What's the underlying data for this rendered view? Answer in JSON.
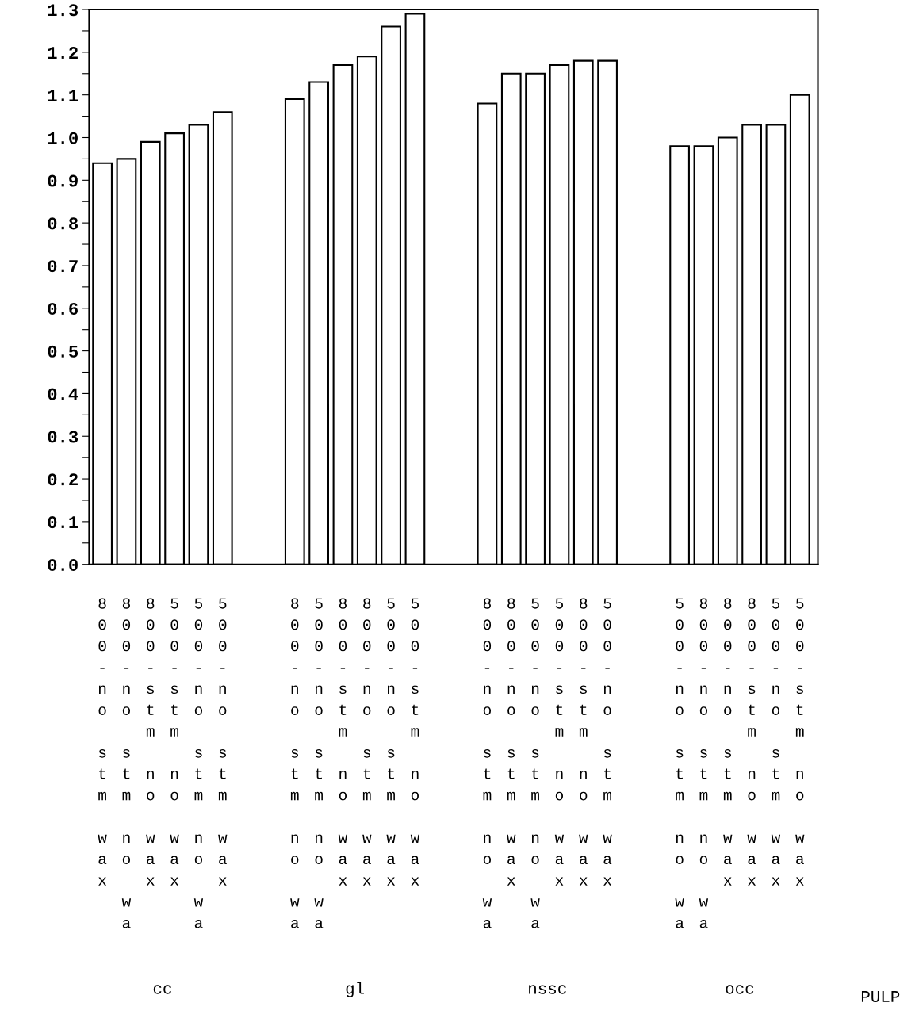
{
  "chart_data": {
    "type": "bar",
    "categories": [
      "800-no stm wax",
      "800-no stm no wa",
      "800-stm no wax",
      "500-stm no wax",
      "500-no stm no wa",
      "500-no stm wax",
      null,
      null,
      "800-no stm no wa",
      "500-no stm no wa",
      "800-stm no wax",
      "800-no stm wax",
      "500-no stm wax",
      "500-stm no wax",
      null,
      null,
      "800-no stm no wa",
      "800-no stm wax",
      "500-no stm no wa",
      "500-stm no wax",
      "800-stm no wax",
      "500-no stm wax",
      null,
      null,
      "500-no stm no wa",
      "800-no stm no wa",
      "800-no stm wax",
      "800-stm no wax",
      "500-no stm wax",
      "500-stm no wax"
    ],
    "values": [
      0.94,
      0.95,
      0.99,
      1.01,
      1.03,
      1.06,
      null,
      null,
      1.09,
      1.13,
      1.17,
      1.19,
      1.26,
      1.29,
      null,
      null,
      1.08,
      1.15,
      1.15,
      1.17,
      1.18,
      1.18,
      null,
      null,
      0.98,
      0.98,
      1.0,
      1.03,
      1.03,
      1.1
    ],
    "color": "#ffffff",
    "annotations": [
      "cc",
      "gl",
      "nssc",
      "occ",
      "PULP"
    ],
    "ylim": [
      0,
      1.3
    ],
    "yticks": [
      {
        "value": 0,
        "label": "0.0"
      },
      {
        "value": 0.05,
        "label": null
      },
      0.1,
      {
        "value": 0.15,
        "label": null
      },
      0.2,
      {
        "value": 0.25,
        "label": null
      },
      0.3,
      {
        "value": 0.35,
        "label": null
      },
      0.4,
      {
        "value": 0.45,
        "label": null
      },
      0.5,
      {
        "value": 0.55,
        "label": null
      },
      0.6,
      {
        "value": 0.65,
        "label": null
      },
      0.7,
      {
        "value": 0.75,
        "label": null
      },
      0.8,
      {
        "value": 0.85,
        "label": null
      },
      0.9,
      {
        "value": 0.95,
        "label": null
      },
      {
        "value": 1.0,
        "label": "1.0"
      },
      {
        "value": 1.05,
        "label": null
      },
      1.1,
      {
        "value": 1.15,
        "label": null
      },
      1.2,
      {
        "value": 1.25,
        "label": null
      },
      1.3
    ],
    "grid": false,
    "legend": false
  }
}
